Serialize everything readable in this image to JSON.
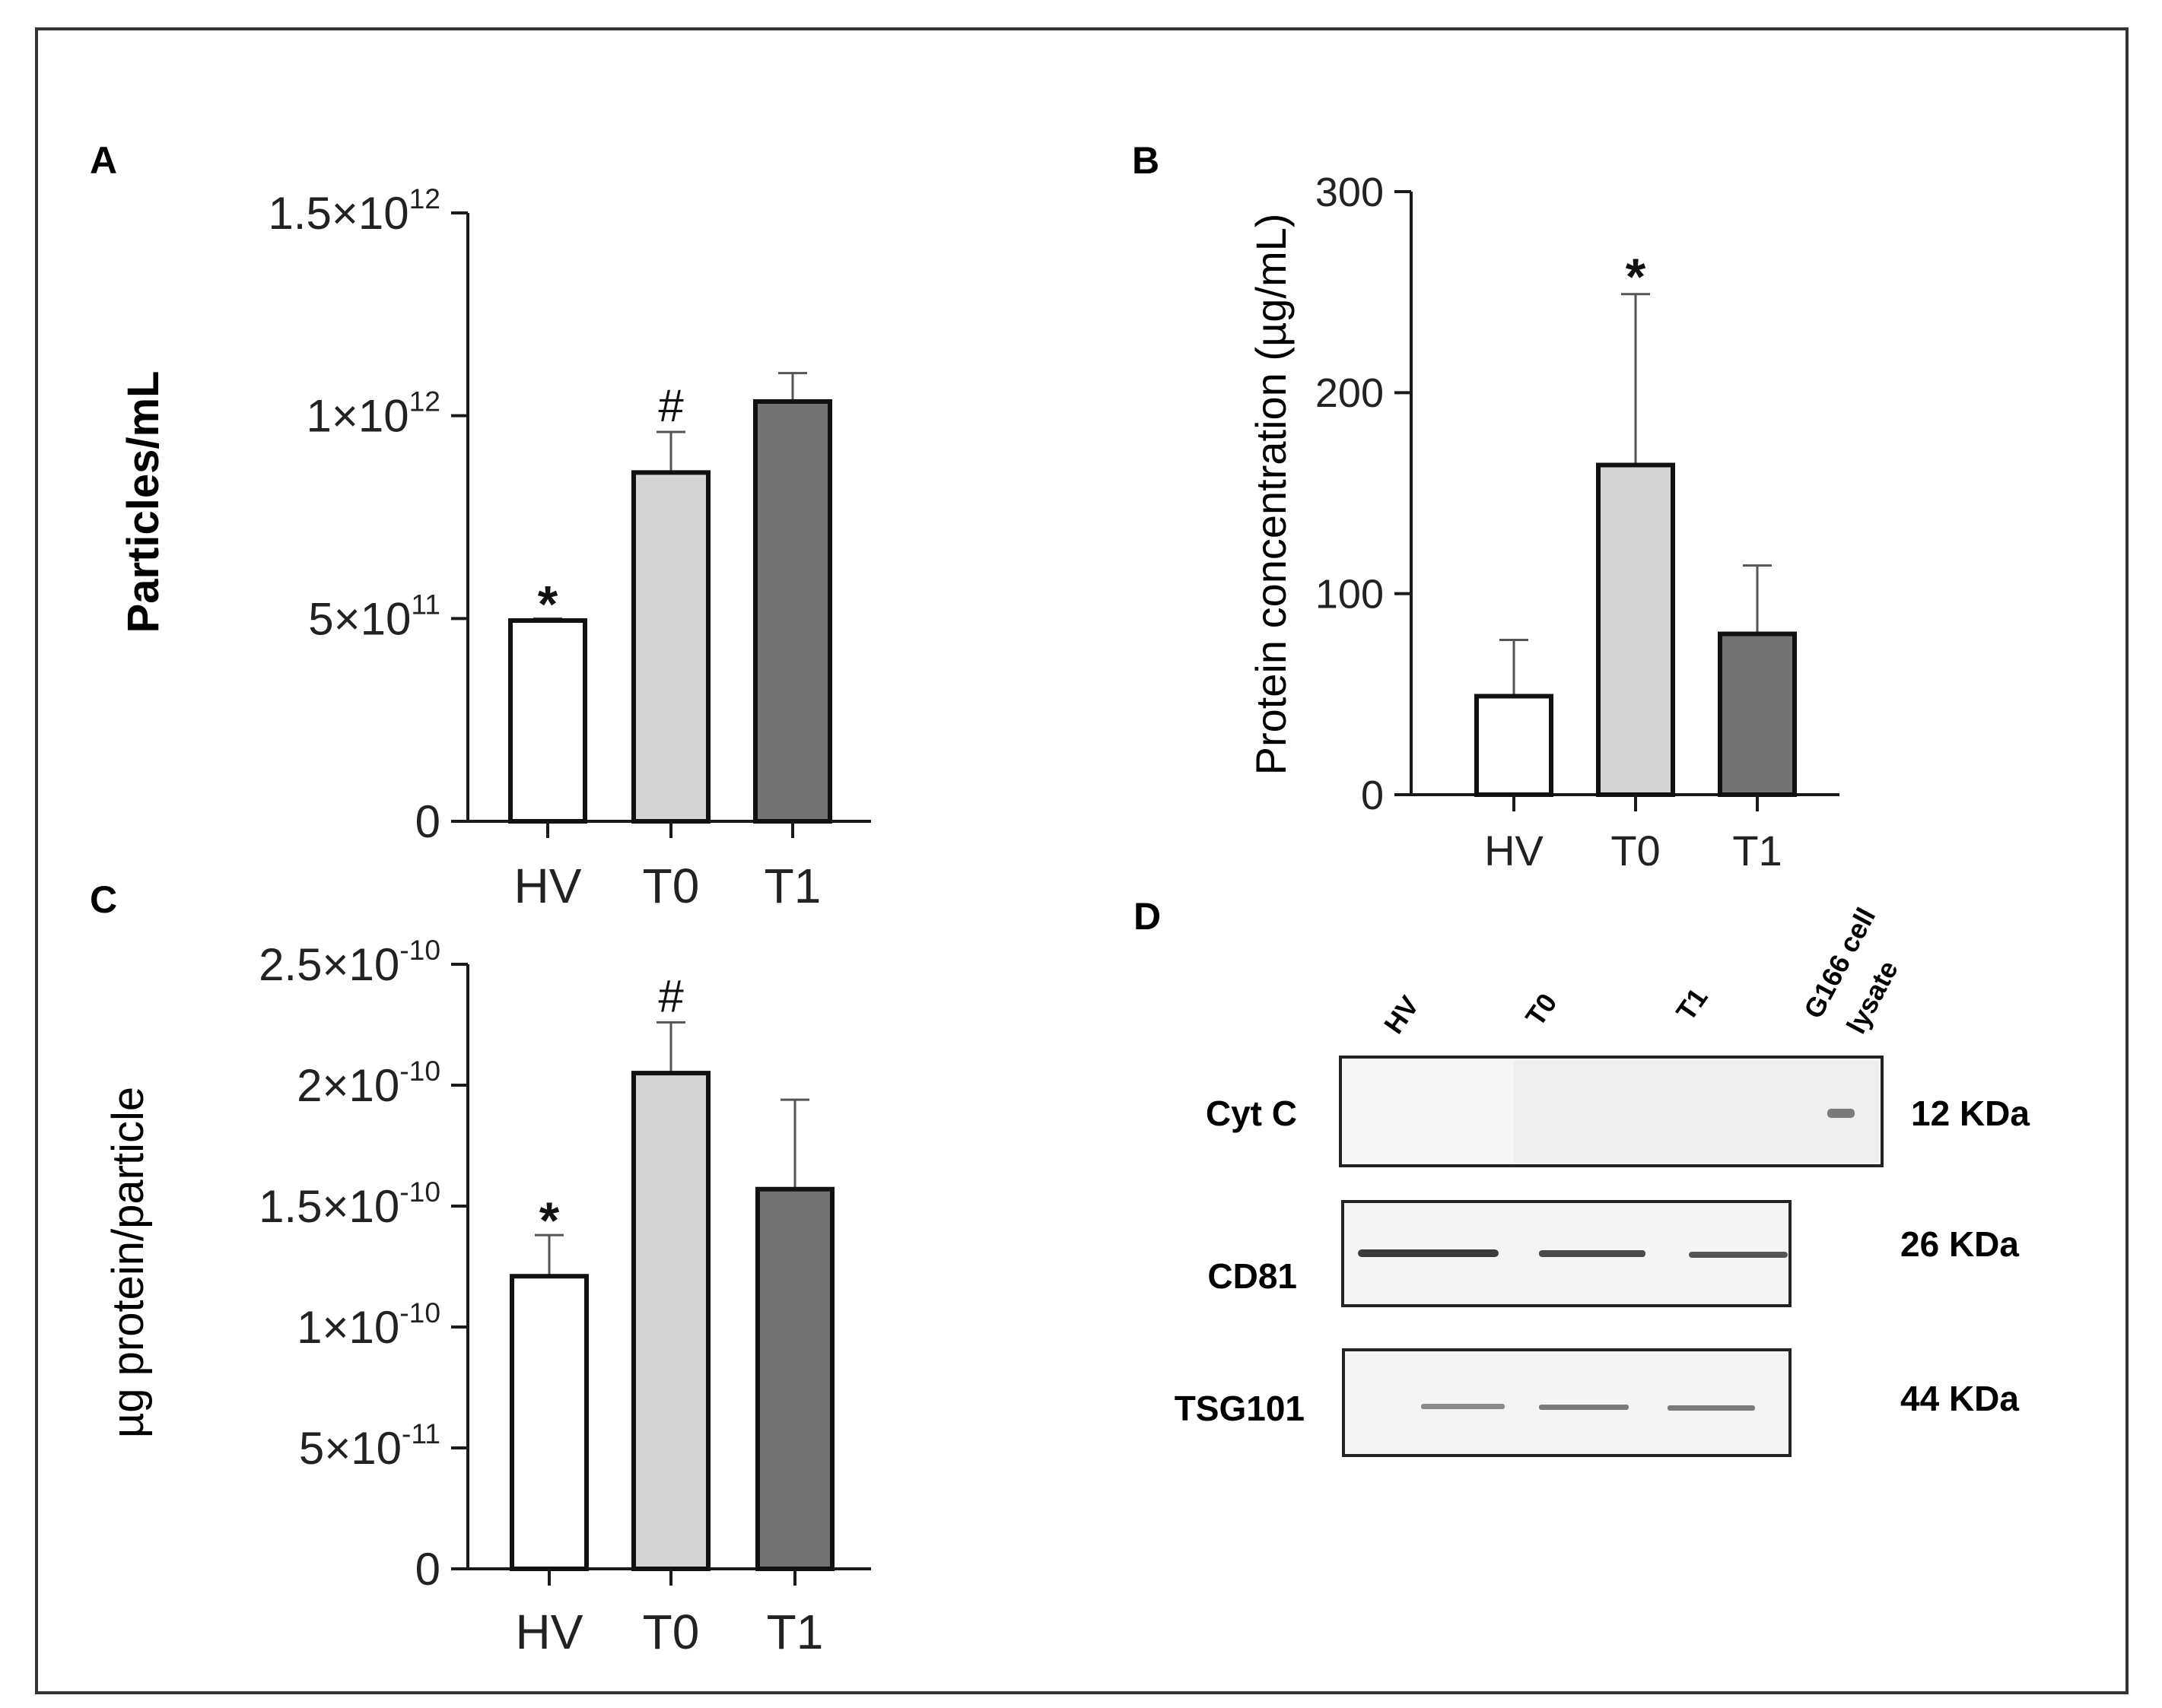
{
  "figure": {
    "colors": {
      "hv": "#ffffff",
      "t0": "#d4d4d4",
      "t1": "#737373",
      "axis": "#1a1a1a",
      "frame": "#333333"
    }
  },
  "chart_data": [
    {
      "panel": "A",
      "type": "bar",
      "categories": [
        "HV",
        "T0",
        "T1"
      ],
      "values": [
        495000000000.0,
        860000000000.0,
        1035000000000.0
      ],
      "errors": [
        5000000000.0,
        100000000000.0,
        70000000000.0
      ],
      "annotations": [
        "*",
        "#",
        ""
      ],
      "ylabel": "Particles/mL",
      "ylim": [
        0,
        1500000000000.0
      ],
      "ticks": [
        {
          "value": 0,
          "mant": "0",
          "exp": ""
        },
        {
          "value": 500000000000.0,
          "mant": "5×10",
          "exp": "11"
        },
        {
          "value": 1000000000000.0,
          "mant": "1×10",
          "exp": "12"
        },
        {
          "value": 1500000000000.0,
          "mant": "1.5×10",
          "exp": "12"
        }
      ]
    },
    {
      "panel": "B",
      "type": "bar",
      "categories": [
        "HV",
        "T0",
        "T1"
      ],
      "values": [
        49,
        164,
        80
      ],
      "errors": [
        28,
        85,
        34
      ],
      "annotations": [
        "",
        "*",
        ""
      ],
      "ylabel": "Protein concentration (µg/mL)",
      "ylim": [
        0,
        300
      ],
      "ticks": [
        {
          "value": 0,
          "mant": "0",
          "exp": ""
        },
        {
          "value": 100,
          "mant": "100",
          "exp": ""
        },
        {
          "value": 200,
          "mant": "200",
          "exp": ""
        },
        {
          "value": 300,
          "mant": "300",
          "exp": ""
        }
      ]
    },
    {
      "panel": "C",
      "type": "bar",
      "categories": [
        "HV",
        "T0",
        "T1"
      ],
      "values": [
        1.21e-10,
        2.05e-10,
        1.57e-10
      ],
      "errors": [
        1.7e-11,
        2.1e-11,
        3.7e-11
      ],
      "annotations": [
        "*",
        "#",
        ""
      ],
      "ylabel": "µg protein/particle",
      "ylim": [
        0,
        2.5e-10
      ],
      "ticks": [
        {
          "value": 0,
          "mant": "0",
          "exp": ""
        },
        {
          "value": 5e-11,
          "mant": "5×10",
          "exp": "-11"
        },
        {
          "value": 1e-10,
          "mant": "1×10",
          "exp": "-10"
        },
        {
          "value": 1.5e-10,
          "mant": "1.5×10",
          "exp": "-10"
        },
        {
          "value": 2e-10,
          "mant": "2×10",
          "exp": "-10"
        },
        {
          "value": 2.5e-10,
          "mant": "2.5×10",
          "exp": "-10"
        }
      ]
    }
  ],
  "blot": {
    "panel": "D",
    "lanes": [
      "HV",
      "T0",
      "T1",
      "G166 cell",
      "lysate"
    ],
    "rows": [
      {
        "label": "Cyt C",
        "size": "12 KDa"
      },
      {
        "label": "CD81",
        "size": "26 KDa"
      },
      {
        "label": "TSG101",
        "size": "44 KDa"
      }
    ]
  }
}
